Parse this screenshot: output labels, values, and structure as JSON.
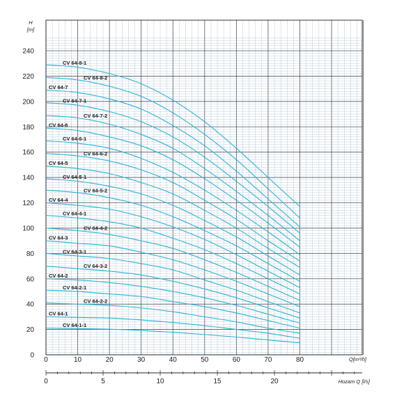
{
  "chart_data": {
    "type": "line",
    "ylabel": "H",
    "yunit": "[m]",
    "xlabel": "Q[m³/h]",
    "xlabel2": "Hozam Q [l/s]",
    "xlim": [
      0,
      100
    ],
    "ylim": [
      0,
      250
    ],
    "x2lim": [
      0,
      27.78
    ],
    "grid": true,
    "yticks": [
      0,
      20,
      40,
      60,
      80,
      100,
      120,
      140,
      160,
      180,
      200,
      220,
      240
    ],
    "xticks": [
      0,
      10,
      20,
      30,
      40,
      50,
      60,
      70,
      80
    ],
    "x2ticks": [
      0,
      5,
      10,
      15,
      20
    ],
    "curve_color": "#29b3d9",
    "curve_x": [
      0,
      10,
      20,
      30,
      40,
      50,
      60,
      70,
      80
    ],
    "series": [
      {
        "name": "CV 64-8-1",
        "values": [
          229,
          227,
          222,
          214,
          201,
          184,
          163,
          140,
          117
        ]
      },
      {
        "name": "CV 64-8-2",
        "values": [
          219,
          217,
          212,
          204,
          191,
          174,
          154,
          131,
          108
        ]
      },
      {
        "name": "CV 64-7",
        "values": [
          209,
          207,
          202,
          194,
          181,
          165,
          145,
          123,
          101
        ]
      },
      {
        "name": "CV 64-7-1",
        "values": [
          199,
          197,
          192,
          184,
          172,
          156,
          137,
          117,
          96
        ]
      },
      {
        "name": "CV 64-7-2",
        "values": [
          189,
          187,
          182,
          174,
          163,
          147,
          129,
          110,
          90
        ]
      },
      {
        "name": "CV 64-6",
        "values": [
          179,
          177,
          172,
          165,
          154,
          139,
          122,
          104,
          85
        ]
      },
      {
        "name": "CV 64-6-1",
        "values": [
          169,
          167,
          163,
          155,
          144,
          130,
          114,
          97,
          79
        ]
      },
      {
        "name": "CV 64-6-2",
        "values": [
          159,
          157,
          153,
          146,
          136,
          122,
          107,
          90,
          74
        ]
      },
      {
        "name": "CV 64-5",
        "values": [
          149,
          147,
          143,
          136,
          127,
          114,
          100,
          84,
          69
        ]
      },
      {
        "name": "CV 64-5-1",
        "values": [
          139,
          137,
          133,
          127,
          118,
          106,
          93,
          78,
          63
        ]
      },
      {
        "name": "CV 64-5-2",
        "values": [
          130,
          128,
          124,
          118,
          109,
          98,
          86,
          72,
          58
        ]
      },
      {
        "name": "CV 64-4",
        "values": [
          120,
          118,
          115,
          109,
          101,
          91,
          79,
          66,
          53
        ]
      },
      {
        "name": "CV 64-4-1",
        "values": [
          110,
          108,
          105,
          100,
          92,
          83,
          72,
          60,
          48
        ]
      },
      {
        "name": "CV 64-4-2",
        "values": [
          100,
          98,
          95,
          90,
          84,
          75,
          65,
          54,
          43
        ]
      },
      {
        "name": "CV 64-3",
        "values": [
          90,
          88,
          86,
          81,
          75,
          67,
          58,
          48,
          38
        ]
      },
      {
        "name": "CV 64-3-1",
        "values": [
          80,
          78,
          76,
          72,
          67,
          59,
          51,
          42,
          33
        ]
      },
      {
        "name": "CV 64-3-2",
        "values": [
          70,
          68,
          66,
          63,
          58,
          52,
          45,
          37,
          29
        ]
      },
      {
        "name": "CV 64-2",
        "values": [
          60,
          59,
          57,
          54,
          50,
          45,
          39,
          32,
          25
        ]
      },
      {
        "name": "CV 64-2-1",
        "values": [
          51,
          50,
          48,
          46,
          42,
          38,
          33,
          27,
          21
        ]
      },
      {
        "name": "CV 64-2-2",
        "values": [
          41,
          40,
          39,
          37,
          34,
          30,
          26,
          21,
          17
        ]
      },
      {
        "name": "CV 64-1",
        "values": [
          30,
          29.5,
          29,
          27.5,
          25.5,
          23,
          20,
          17,
          13
        ]
      },
      {
        "name": "CV 64-1-1",
        "values": [
          21,
          20.7,
          20.2,
          19.2,
          17.8,
          16,
          14,
          11.7,
          9.5
        ]
      }
    ]
  }
}
